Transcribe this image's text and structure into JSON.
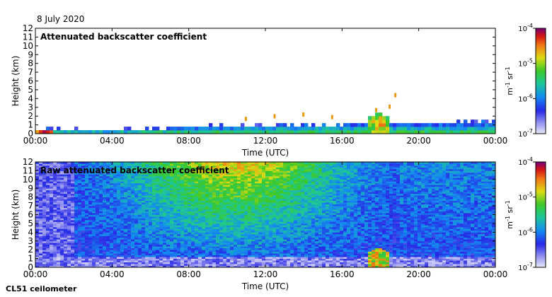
{
  "date": "8 July 2020",
  "footer": "CL51 ceilometer",
  "chart_data": [
    {
      "type": "heatmap",
      "title": "Attenuated backscatter coefficient",
      "xlabel": "Time (UTC)",
      "ylabel": "Height (km)",
      "x_ticks": [
        "00:00",
        "04:00",
        "08:00",
        "12:00",
        "16:00",
        "20:00",
        "00:00"
      ],
      "x_range_hours": [
        0,
        24
      ],
      "y_ticks": [
        0,
        1,
        2,
        3,
        4,
        5,
        6,
        7,
        8,
        9,
        10,
        11,
        12
      ],
      "ylim": [
        0,
        12
      ],
      "colorbar": {
        "scale": "log",
        "range": [
          1e-07,
          0.0001
        ],
        "tick_labels": [
          "10-7",
          "10-6",
          "10-5",
          "10-4"
        ],
        "unit_label": "m-1 sr-1"
      },
      "features": {
        "boundary_layer_top_km": [
          [
            0,
            0.4
          ],
          [
            4,
            0.35
          ],
          [
            8,
            0.7
          ],
          [
            12,
            0.9
          ],
          [
            16,
            1.0
          ],
          [
            17.5,
            1.1
          ],
          [
            20,
            1.1
          ],
          [
            24,
            1.2
          ]
        ],
        "scattered_cloud_km": [
          [
            11,
            1.6
          ],
          [
            12.5,
            1.9
          ],
          [
            14,
            2.1
          ],
          [
            15.5,
            1.8
          ],
          [
            17.8,
            2.6
          ],
          [
            18.5,
            3.0
          ],
          [
            18.8,
            4.3
          ]
        ],
        "rain_columns_hours": [
          17.3,
          18.5
        ]
      }
    },
    {
      "type": "heatmap",
      "title": "Raw attenuated backscatter coefficient",
      "xlabel": "Time (UTC)",
      "ylabel": "Height (km)",
      "x_ticks": [
        "00:00",
        "04:00",
        "08:00",
        "12:00",
        "16:00",
        "20:00",
        "00:00"
      ],
      "x_range_hours": [
        0,
        24
      ],
      "y_ticks": [
        0,
        1,
        2,
        3,
        4,
        5,
        6,
        7,
        8,
        9,
        10,
        11,
        12
      ],
      "ylim": [
        0,
        12
      ],
      "colorbar": {
        "scale": "log",
        "range": [
          1e-07,
          0.0001
        ],
        "tick_labels": [
          "10-7",
          "10-6",
          "10-5",
          "10-4"
        ],
        "unit_label": "m-1 sr-1"
      },
      "features": {
        "noise_peak_hours": [
          10,
          11
        ],
        "rain_columns_hours": [
          17.3,
          18.5
        ]
      }
    }
  ]
}
